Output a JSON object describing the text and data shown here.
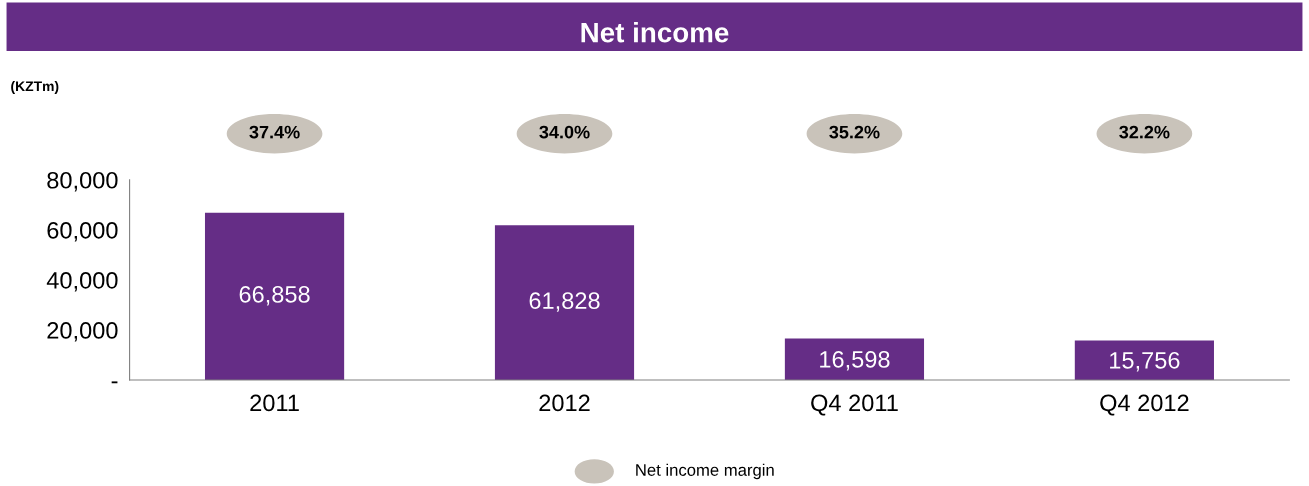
{
  "chart_data": [
    {
      "type": "other",
      "annotations": [
        "37.4%",
        "34.0%",
        "35.2%",
        "32.2%",
        "Net income margin"
      ]
    },
    {
      "type": "bar",
      "title": "Net income",
      "annotations": [
        "(KZTm)"
      ],
      "categories": [
        "2011",
        "2012",
        "Q4 2011",
        "Q4 2012"
      ],
      "ylim": [
        0,
        80000
      ],
      "yticks": [
        {
          "value": 0,
          "label": "-"
        },
        {
          "value": 20000,
          "label": "20,000"
        },
        {
          "value": 40000,
          "label": "40,000"
        },
        {
          "value": 60000,
          "label": "60,000"
        },
        {
          "value": 80000,
          "label": "80,000"
        }
      ],
      "color": "#652d86",
      "values": [
        66858,
        61828,
        16598,
        15756
      ],
      "value_labels": [
        "66,858",
        "61,828",
        "16,598",
        "15,756"
      ]
    }
  ]
}
